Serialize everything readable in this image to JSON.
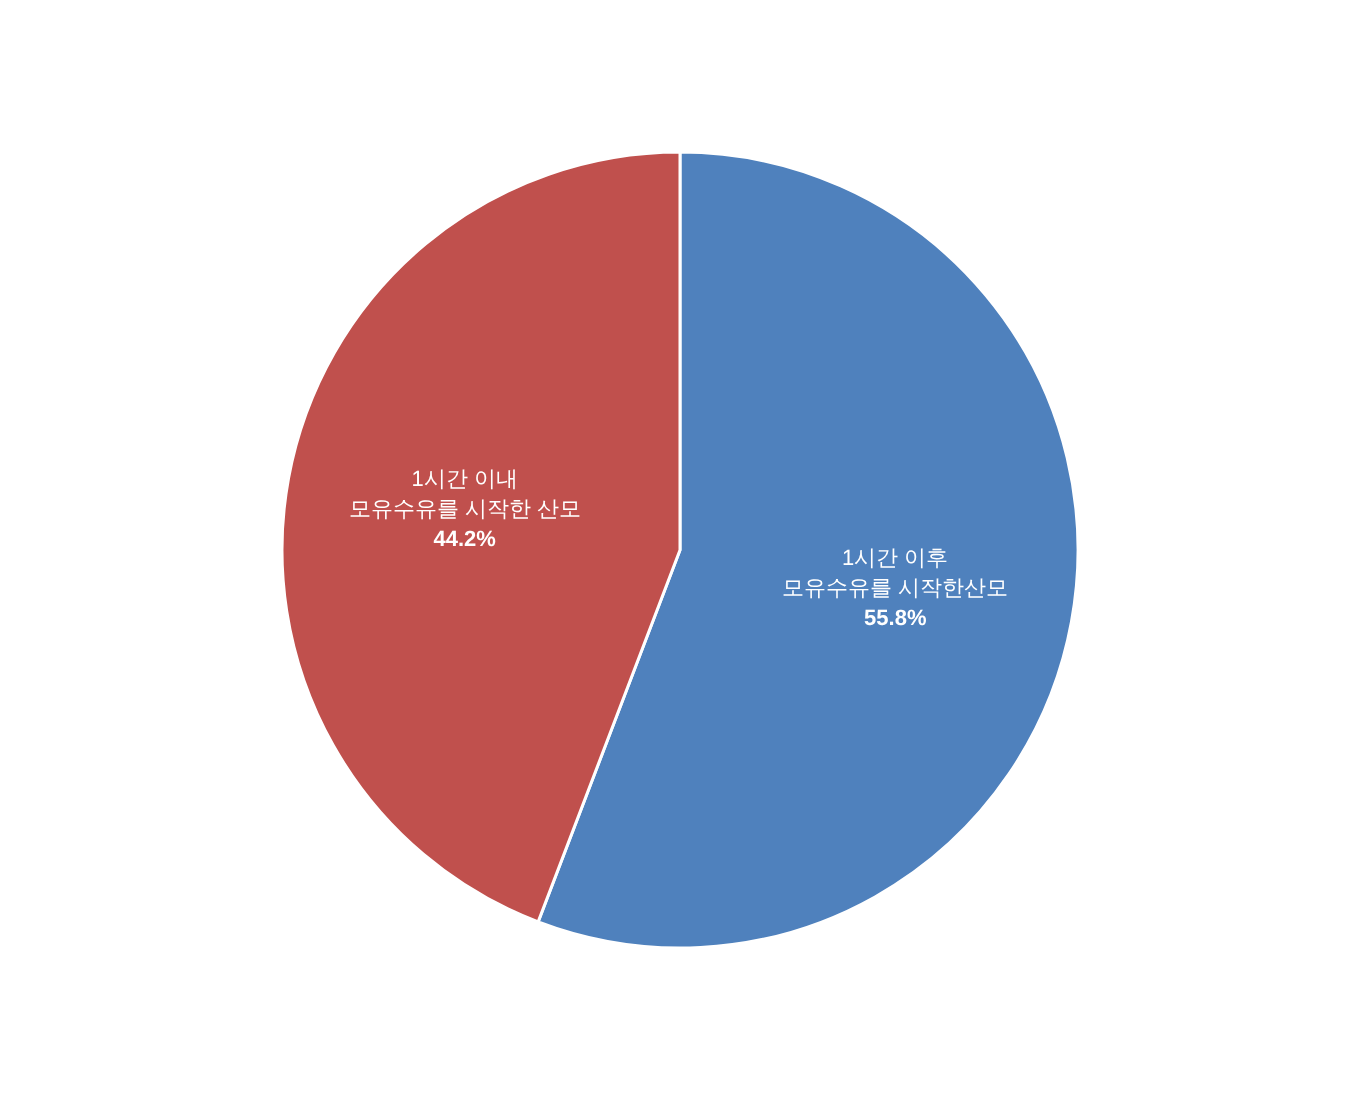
{
  "chart_data": {
    "type": "pie",
    "categories": [
      "1시간 이후\n모유수유를 시작한산모",
      "1시간 이내\n모유수유를 시작한 산모"
    ],
    "values": [
      55.8,
      44.2
    ],
    "colors": [
      "#4f81bd",
      "#c0504d"
    ],
    "value_labels": [
      "55.8%",
      "44.2%"
    ]
  }
}
